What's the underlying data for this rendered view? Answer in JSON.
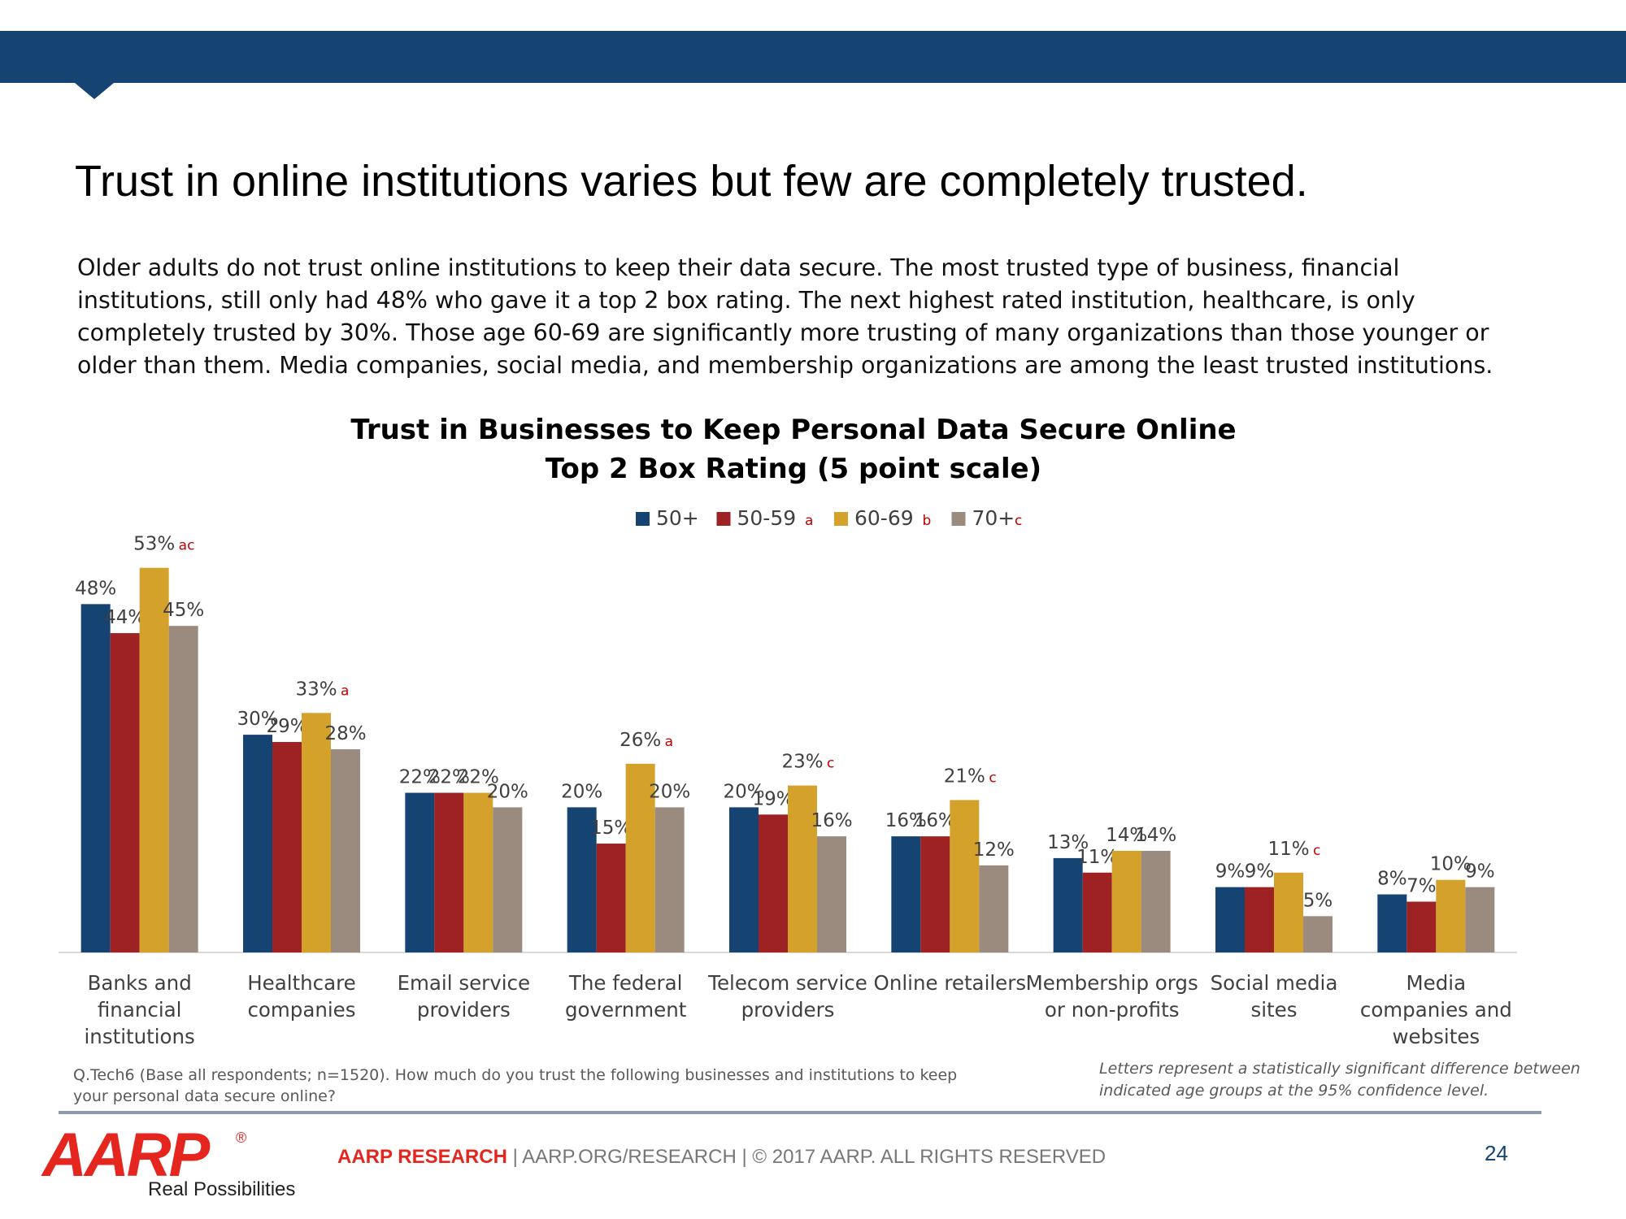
{
  "slide": {
    "title": "Trust in online institutions varies but few are completely trusted.",
    "intro": "Older adults do not trust online institutions to keep their data secure. The most trusted type of business, financial institutions, still only had 48% who gave it a top 2 box rating. The next highest rated institution, healthcare, is only completely trusted by 30%. Those age 60-69 are significantly more trusting of many organizations than those younger or older than them. Media companies, social media, and membership organizations are among the least trusted institutions."
  },
  "chart_data": {
    "type": "bar",
    "title": "Trust in Businesses to Keep Personal Data Secure Online",
    "subtitle": "Top 2 Box Rating (5 point scale)",
    "ylim": [
      0,
      55
    ],
    "categories": [
      [
        "Banks and",
        "financial",
        "institutions"
      ],
      [
        "Healthcare",
        "companies"
      ],
      [
        "Email service",
        "providers"
      ],
      [
        "The federal",
        "government"
      ],
      [
        "Telecom service",
        "providers"
      ],
      [
        "Online retailers"
      ],
      [
        "Membership orgs",
        "or non-profits"
      ],
      [
        "Social media",
        "sites"
      ],
      [
        "Media",
        "companies and",
        "websites"
      ]
    ],
    "series": [
      {
        "name": "50+",
        "letter": "",
        "color": "#154372",
        "values": [
          48,
          30,
          22,
          20,
          20,
          16,
          13,
          9,
          8
        ]
      },
      {
        "name": "50-59",
        "letter": "a",
        "color": "#9e2224",
        "values": [
          44,
          29,
          22,
          15,
          19,
          16,
          11,
          9,
          7
        ]
      },
      {
        "name": "60-69",
        "letter": "b",
        "color": "#d4a12b",
        "values": [
          53,
          33,
          22,
          26,
          23,
          21,
          14,
          11,
          10
        ]
      },
      {
        "name": "70+",
        "letter": "c",
        "color": "#9b8b7e",
        "values": [
          45,
          28,
          20,
          20,
          16,
          12,
          14,
          5,
          9
        ]
      }
    ],
    "significance": [
      {
        "category": 0,
        "series": 2,
        "letters": "ac"
      },
      {
        "category": 1,
        "series": 2,
        "letters": "a"
      },
      {
        "category": 3,
        "series": 2,
        "letters": "a"
      },
      {
        "category": 4,
        "series": 2,
        "letters": "c"
      },
      {
        "category": 5,
        "series": 2,
        "letters": "c"
      },
      {
        "category": 7,
        "series": 2,
        "letters": "c"
      }
    ],
    "value_suffix": "%",
    "label_color": "#404040",
    "letter_color": "#c00000"
  },
  "notes": {
    "question": "Q.Tech6 (Base all respondents; n=1520). How much do you trust the following businesses and institutions to keep your personal data secure online?",
    "significance": "Letters represent a statistically significant difference between indicated age groups at the 95% confidence level."
  },
  "footer": {
    "logo_text": "AARP",
    "logo_mark": "®",
    "tagline": "Real Possibilities",
    "brand": "AARP RESEARCH",
    "rest": " | AARP.ORG/RESEARCH | © 2017 AARP. ALL RIGHTS RESERVED",
    "page_number": "24"
  }
}
